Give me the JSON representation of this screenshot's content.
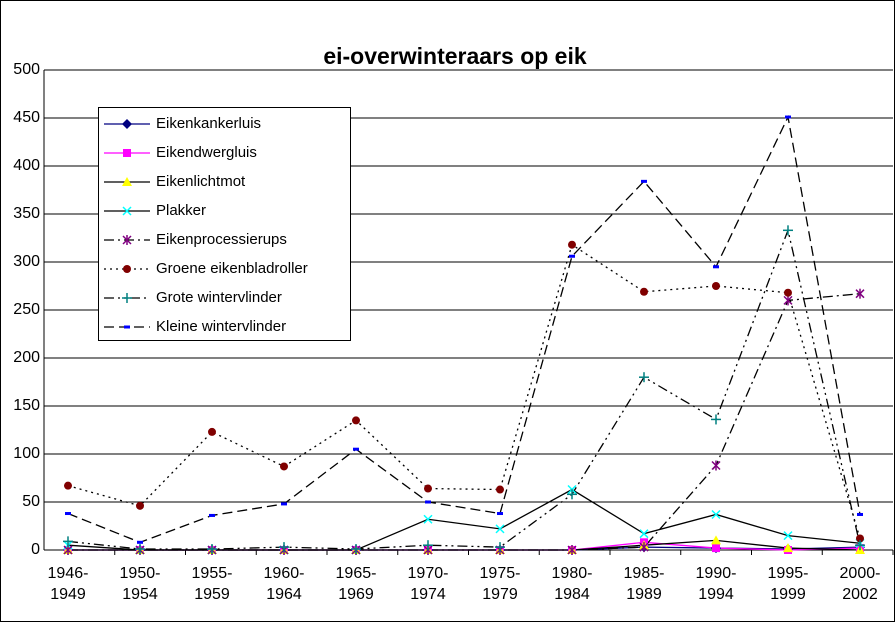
{
  "chart_data": {
    "type": "line",
    "title": "ei-overwinteraars op eik",
    "categories": [
      "1946-1949",
      "1950-1954",
      "1955-1959",
      "1960-1964",
      "1965-1969",
      "1970-1974",
      "1975-1979",
      "1980-1984",
      "1985-1989",
      "1990-1994",
      "1995-1999",
      "2000-2002"
    ],
    "ylim": [
      0,
      500
    ],
    "yticks": [
      0,
      50,
      100,
      150,
      200,
      250,
      300,
      350,
      400,
      450,
      500
    ],
    "grid": true,
    "legend": "upper left",
    "series": [
      {
        "name": "Eikenkankerluis",
        "color": "#000080",
        "line_color": "#000080",
        "marker": "diamond",
        "dash": "solid",
        "values": [
          0,
          0,
          0,
          0,
          0,
          0,
          0,
          0,
          3,
          2,
          1,
          3
        ]
      },
      {
        "name": "Eikendwergluis",
        "color": "#ff00ff",
        "line_color": "#ff00ff",
        "marker": "square",
        "dash": "solid",
        "values": [
          0,
          0,
          0,
          0,
          0,
          0,
          0,
          0,
          8,
          2,
          0,
          2
        ]
      },
      {
        "name": "Eikenlichtmot",
        "color": "#ffff00",
        "line_color": "#000000",
        "marker": "triangle",
        "dash": "solid",
        "values": [
          0,
          0,
          0,
          0,
          0,
          0,
          0,
          0,
          5,
          10,
          2,
          0
        ]
      },
      {
        "name": "Plakker",
        "color": "#00ffff",
        "line_color": "#000000",
        "marker": "x",
        "dash": "solid",
        "values": [
          5,
          0,
          0,
          0,
          0,
          32,
          22,
          63,
          17,
          37,
          15,
          7
        ]
      },
      {
        "name": "Eikenprocessierups",
        "color": "#800080",
        "line_color": "#000000",
        "marker": "star",
        "dash": "dashdot",
        "values": [
          0,
          0,
          0,
          0,
          0,
          0,
          0,
          0,
          3,
          88,
          260,
          267
        ]
      },
      {
        "name": "Groene eikenbladroller",
        "color": "#800000",
        "line_color": "#000000",
        "marker": "circle",
        "dash": "dotted",
        "values": [
          67,
          46,
          123,
          87,
          135,
          64,
          63,
          318,
          269,
          275,
          268,
          12
        ]
      },
      {
        "name": "Grote wintervlinder",
        "color": "#008080",
        "line_color": "#000000",
        "marker": "plus",
        "dash": "dashdotdot",
        "values": [
          9,
          1,
          1,
          3,
          1,
          5,
          3,
          58,
          180,
          136,
          333,
          5
        ]
      },
      {
        "name": "Kleine wintervlinder",
        "color": "#0000ff",
        "line_color": "#000000",
        "marker": "dash",
        "dash": "dashed",
        "values": [
          38,
          8,
          36,
          48,
          105,
          50,
          38,
          306,
          384,
          295,
          451,
          37
        ]
      }
    ]
  }
}
